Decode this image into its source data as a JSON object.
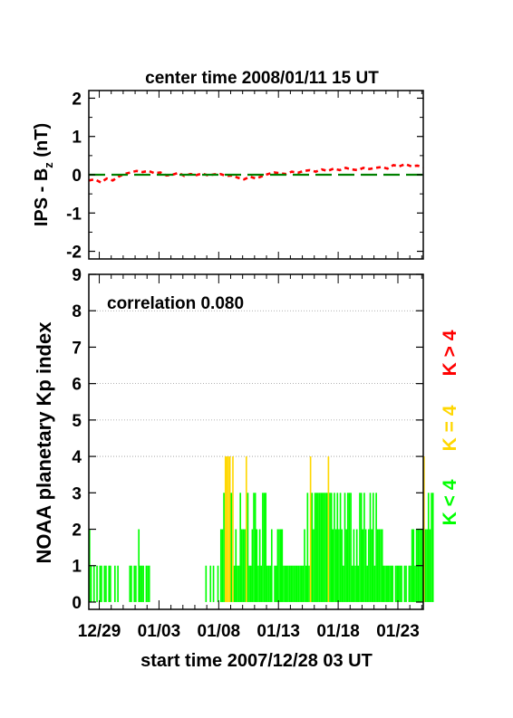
{
  "chart_data": [
    {
      "type": "line",
      "title": "center time 2008/01/11 15 UT",
      "ylabel": "IPS - B",
      "ylabel_sub": "z",
      "ylabel_unit": " (nT)",
      "ylim": [
        -2.2,
        2.2
      ],
      "yticks": [
        "2",
        "1",
        "0",
        "-1",
        "-2"
      ],
      "ytick_values": [
        2,
        1,
        0,
        -1,
        -2
      ],
      "x_days_range": [
        0,
        28
      ],
      "series": [
        {
          "color": "#ff0000",
          "style": "dashed",
          "x": [
            0,
            0.5,
            1,
            1.5,
            2,
            2.5,
            3,
            3.5,
            4,
            4.5,
            5,
            5.5,
            6,
            6.5,
            7,
            7.5,
            8,
            8.5,
            9,
            9.5,
            10,
            10.5,
            11,
            11.5,
            12,
            12.5,
            13,
            13.5,
            14,
            14.5,
            15,
            15.5,
            16,
            16.5,
            17,
            17.5,
            18,
            18.5,
            19,
            19.5,
            20,
            20.5,
            21,
            21.5,
            22,
            22.5,
            23,
            23.5,
            24,
            24.5,
            25,
            25.5,
            26,
            26.5,
            27,
            27.5,
            28
          ],
          "y": [
            -0.15,
            -0.12,
            -0.2,
            -0.1,
            -0.15,
            -0.05,
            0.02,
            0.06,
            0.1,
            0.07,
            0.1,
            0.04,
            0.06,
            -0.02,
            0,
            0.05,
            -0.03,
            0.02,
            -0.01,
            0.03,
            -0.02,
            0.01,
            0.02,
            -0.03,
            -0.02,
            -0.08,
            -0.12,
            -0.05,
            -0.1,
            -0.04,
            0.02,
            0.06,
            0.04,
            0.02,
            0.08,
            0.05,
            0.1,
            0.12,
            0.08,
            0.14,
            0.1,
            0.16,
            0.12,
            0.18,
            0.14,
            0.12,
            0.18,
            0.15,
            0.18,
            0.2,
            0.16,
            0.25,
            0.22,
            0.28,
            0.22,
            0.24,
            0.2
          ]
        },
        {
          "color": "#008000",
          "style": "long-dash",
          "x": [
            0,
            28
          ],
          "y": [
            0,
            0
          ]
        }
      ]
    },
    {
      "type": "bar",
      "annotation": "correlation 0.080",
      "ylabel": "NOAA planetary Kp index",
      "ylim": [
        -0.2,
        9
      ],
      "yticks": [
        "9",
        "8",
        "7",
        "6",
        "5",
        "4",
        "3",
        "2",
        "1",
        "0"
      ],
      "ytick_values": [
        9,
        8,
        7,
        6,
        5,
        4,
        3,
        2,
        1,
        0
      ],
      "gridlines": [
        8,
        6,
        5,
        4
      ],
      "xticks": [
        "12/29",
        "01/03",
        "01/08",
        "01/13",
        "01/18",
        "01/23"
      ],
      "xtick_days": [
        0.875,
        5.875,
        10.875,
        15.875,
        20.875,
        25.875
      ],
      "x_days_range": [
        0,
        28
      ],
      "xlabel": "start time 2007/12/28 03 UT",
      "bin_hours": 3,
      "kp_values": [
        2,
        1,
        0,
        1,
        0,
        1,
        0,
        1,
        1,
        0,
        1,
        1,
        0,
        1,
        1,
        0,
        0,
        1,
        0,
        1,
        0,
        0,
        0,
        0,
        0,
        0,
        0,
        1,
        1,
        0,
        1,
        1,
        0,
        2,
        1,
        1,
        1,
        0,
        1,
        1,
        1,
        0,
        0,
        0,
        0,
        0,
        0,
        0,
        0,
        0,
        0,
        0,
        0,
        0,
        0,
        0,
        0,
        0,
        0,
        0,
        0,
        0,
        0,
        0,
        0,
        0,
        0,
        0,
        0,
        0,
        0,
        0,
        0,
        0,
        0,
        0,
        0,
        0,
        1,
        0,
        0,
        1,
        0,
        1,
        0,
        0,
        1,
        0,
        2,
        2,
        3,
        4,
        4,
        4,
        4,
        3,
        4,
        1,
        2,
        1,
        1,
        3,
        2,
        2,
        2,
        4,
        3,
        1,
        1,
        2,
        3,
        3,
        2,
        1,
        2,
        1,
        3,
        3,
        3,
        1,
        1,
        1,
        2,
        0,
        1,
        1,
        2,
        2,
        2,
        2,
        1,
        1,
        1,
        1,
        1,
        1,
        1,
        1,
        1,
        1,
        1,
        1,
        1,
        1,
        2,
        1,
        3,
        1,
        4,
        3,
        2,
        3,
        3,
        3,
        3,
        3,
        3,
        3,
        3,
        3,
        4,
        3,
        3,
        2,
        3,
        2,
        3,
        2,
        3,
        2,
        1,
        3,
        2,
        3,
        3,
        3,
        1,
        2,
        1,
        2,
        1,
        3,
        3,
        2,
        3,
        2,
        1,
        2,
        3,
        2,
        3,
        1,
        3,
        2,
        2,
        2,
        2,
        1,
        1,
        1,
        1,
        1,
        1,
        1,
        0,
        1,
        1,
        1,
        1,
        1,
        0,
        1,
        1,
        0,
        1,
        1,
        2,
        2,
        1,
        2,
        2,
        2,
        2,
        2,
        4,
        2,
        2,
        3,
        2,
        3,
        3
      ],
      "legend": [
        {
          "label": "K < 4",
          "color": "#00ff00"
        },
        {
          "label": "K = 4",
          "color": "#ffd700"
        },
        {
          "label": "K > 4",
          "color": "#ff0000"
        }
      ]
    }
  ]
}
